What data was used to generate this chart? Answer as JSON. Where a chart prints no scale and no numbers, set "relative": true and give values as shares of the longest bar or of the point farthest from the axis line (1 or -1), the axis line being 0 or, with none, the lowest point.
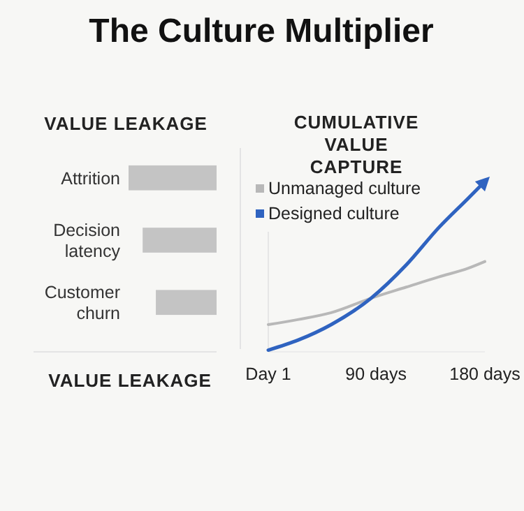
{
  "chart_data": [
    {
      "type": "bar",
      "title": "The Culture Multiplier",
      "subtitle": "VALUE LEAKAGE",
      "xlabel": "VALUE LEAKAGE",
      "orientation": "horizontal",
      "relative": true,
      "categories": [
        "Attrition",
        "Decision latency",
        "Customer churn"
      ],
      "values": [
        1,
        0.84,
        0.69
      ],
      "color": "#c4c4c4"
    },
    {
      "type": "line",
      "title": "CUMULATIVE VALUE CAPTURE",
      "relative": true,
      "legend": "top left",
      "xlim": [
        1,
        180
      ],
      "xticks": [
        {
          "value": 1,
          "label": "Day 1"
        },
        {
          "value": 90,
          "label": "90 days"
        },
        {
          "value": 180,
          "label": "180 days"
        }
      ],
      "series": [
        {
          "name": "Unmanaged culture",
          "color": "#b8b8b8",
          "x": [
            1,
            26,
            53,
            86,
            115,
            142,
            166,
            180
          ],
          "values": [
            0.16,
            0.19,
            0.23,
            0.315,
            0.38,
            0.44,
            0.49,
            0.53
          ]
        },
        {
          "name": "Designed culture",
          "color": "#2f63c0",
          "x": [
            1,
            26,
            53,
            86,
            115,
            142,
            166,
            180
          ],
          "values": [
            0.01,
            0.07,
            0.16,
            0.315,
            0.51,
            0.73,
            0.9,
            1
          ]
        }
      ]
    }
  ]
}
